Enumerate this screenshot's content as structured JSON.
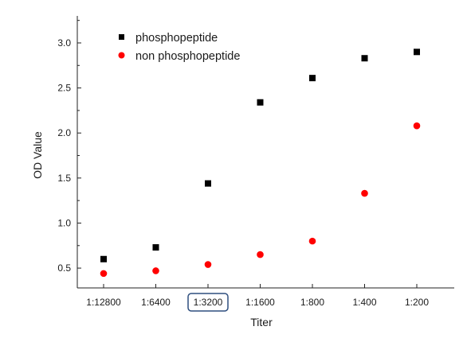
{
  "chart_data": {
    "type": "scatter",
    "xlabel": "Titer",
    "ylabel": "OD Value",
    "categories": [
      "1:12800",
      "1:6400",
      "1:3200",
      "1:1600",
      "1:800",
      "1:400",
      "1:200"
    ],
    "highlighted_category": "1:3200",
    "ylim": [
      0.28,
      3.3
    ],
    "yticks": [
      "0.5",
      "1.0",
      "1.5",
      "2.0",
      "2.5",
      "3.0"
    ],
    "grid": false,
    "legend_position": "top-left",
    "series": [
      {
        "name": "phosphopeptide",
        "marker": "square",
        "color": "#000000",
        "values": [
          0.6,
          0.73,
          1.44,
          2.34,
          2.61,
          2.83,
          2.9
        ]
      },
      {
        "name": "non phosphopeptide",
        "marker": "circle",
        "color": "#ff0000",
        "values": [
          0.44,
          0.47,
          0.54,
          0.65,
          0.8,
          1.33,
          2.08
        ]
      }
    ]
  }
}
